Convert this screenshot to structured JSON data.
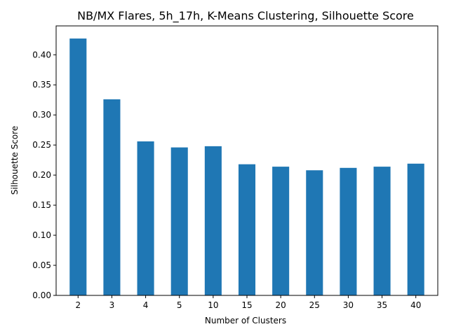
{
  "chart_data": {
    "type": "bar",
    "title": "NB/MX Flares, 5h_17h, K-Means Clustering, Silhouette Score",
    "xlabel": "Number of Clusters",
    "ylabel": "Silhouette Score",
    "categories": [
      "2",
      "3",
      "4",
      "5",
      "10",
      "15",
      "20",
      "25",
      "30",
      "35",
      "40"
    ],
    "values": [
      0.427,
      0.326,
      0.256,
      0.246,
      0.248,
      0.218,
      0.214,
      0.208,
      0.212,
      0.214,
      0.219
    ],
    "ylim": [
      0.0,
      0.448
    ],
    "yticks": [
      "0.00",
      "0.05",
      "0.10",
      "0.15",
      "0.20",
      "0.25",
      "0.30",
      "0.35",
      "0.40"
    ],
    "bar_color": "#1f77b4",
    "grid": false,
    "legend": "none"
  }
}
